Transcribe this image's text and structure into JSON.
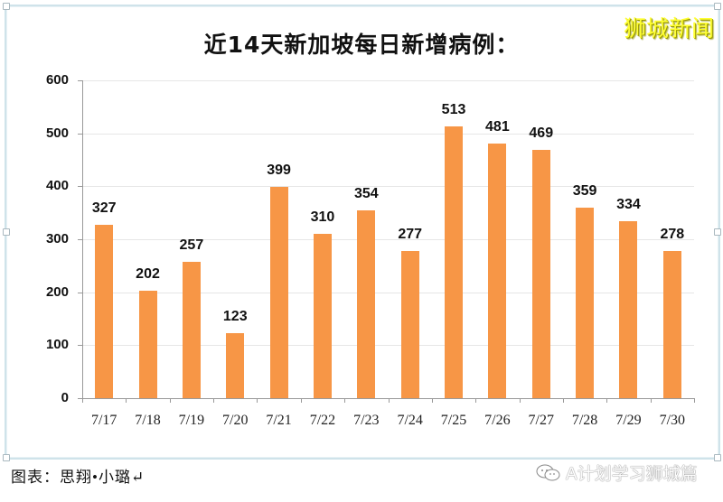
{
  "title": "近14天新加坡每日新增病例：",
  "brand": "狮城新闻",
  "credit": "图表：思翔•小璐↵",
  "watermark": {
    "icon": "wechat-icon",
    "text": "A计划学习狮城篇"
  },
  "colors": {
    "bar": "#f79646",
    "brand": "#ffff33",
    "frame": "#cfe3ea",
    "grid": "#e6e6e6"
  },
  "chart_data": {
    "type": "bar",
    "title": "近14天新加坡每日新增病例：",
    "categories": [
      "7/17",
      "7/18",
      "7/19",
      "7/20",
      "7/21",
      "7/22",
      "7/23",
      "7/24",
      "7/25",
      "7/26",
      "7/27",
      "7/28",
      "7/29",
      "7/30"
    ],
    "values": [
      327,
      202,
      257,
      123,
      399,
      310,
      354,
      277,
      513,
      481,
      469,
      359,
      334,
      278
    ],
    "xlabel": "",
    "ylabel": "",
    "ylim": [
      0,
      600
    ],
    "yticks": [
      0,
      100,
      200,
      300,
      400,
      500,
      600
    ],
    "grid": true,
    "legend": null,
    "data_labels": true
  }
}
